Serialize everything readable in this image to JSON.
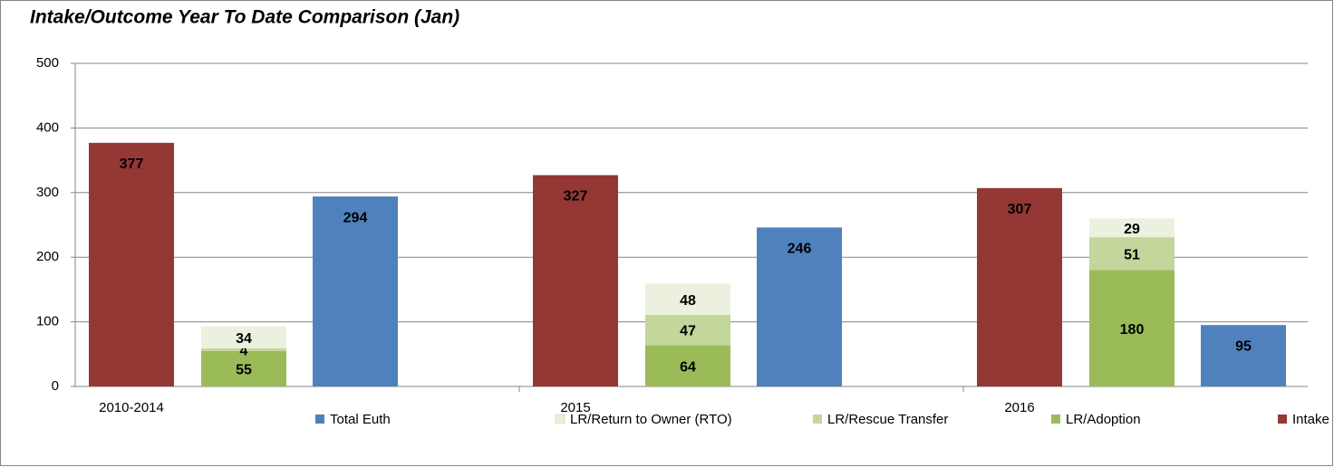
{
  "chart_data": {
    "type": "bar",
    "title": "Intake/Outcome Year To Date Comparison (Jan)",
    "categories": [
      "2010-2014",
      "2015",
      "2016"
    ],
    "series": [
      {
        "name": "Total Euth",
        "color": "#4f81bd",
        "values": [
          294,
          246,
          95
        ]
      },
      {
        "name": "LR/Return to Owner (RTO)",
        "color": "#ebf1de",
        "values": [
          34,
          48,
          29
        ],
        "stack": true
      },
      {
        "name": "LR/Rescue Transfer",
        "color": "#c3d69b",
        "values": [
          4,
          47,
          51
        ],
        "stack": true
      },
      {
        "name": "LR/Adoption",
        "color": "#9bbb59",
        "values": [
          55,
          64,
          180
        ],
        "stack": true
      },
      {
        "name": "Intake",
        "color": "#953735",
        "values": [
          377,
          327,
          307
        ]
      }
    ],
    "ylim": [
      0,
      500
    ],
    "yticks": [
      0,
      100,
      200,
      300,
      400,
      500
    ],
    "grid": true,
    "legend": "bottom"
  }
}
